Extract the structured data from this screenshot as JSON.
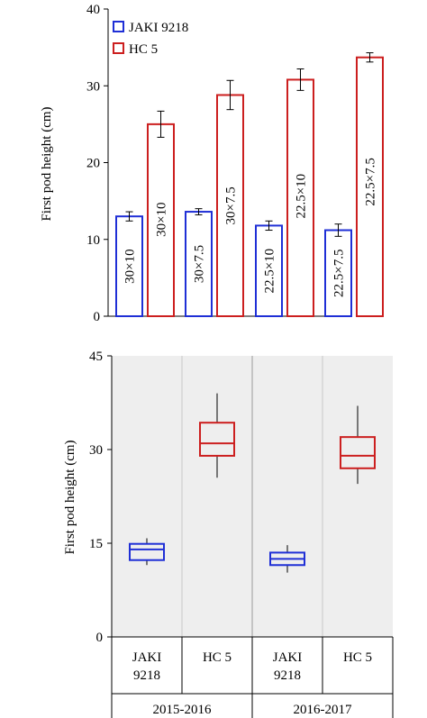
{
  "chart_data": [
    {
      "type": "bar",
      "ylabel": "First pod height (cm)",
      "ylim": [
        0,
        40
      ],
      "yticks": [
        0,
        10,
        20,
        30,
        40
      ],
      "grid": false,
      "legend_position": "top-left",
      "series": [
        {
          "name": "JAKI 9218",
          "color": "#1f2fd6",
          "values": [
            13.0,
            13.6,
            11.8,
            11.2
          ],
          "errors": [
            0.6,
            0.4,
            0.6,
            0.8
          ]
        },
        {
          "name": "HC 5",
          "color": "#cc1f1f",
          "values": [
            25.0,
            28.8,
            30.8,
            33.7
          ],
          "errors": [
            1.7,
            1.9,
            1.4,
            0.6
          ]
        }
      ],
      "bar_labels": [
        "30×10",
        "30×10",
        "30×7.5",
        "30×7.5",
        "22.5×10",
        "22.5×10",
        "22.5×7.5",
        "22.5×7.5"
      ]
    },
    {
      "type": "box",
      "ylabel": "First pod  height (cm)",
      "ylim": [
        0,
        45
      ],
      "yticks": [
        0,
        15,
        30,
        45
      ],
      "background": "#eeeeee",
      "categories": [
        "JAKI\n9218",
        "HC 5",
        "JAKI\n9218",
        "HC 5"
      ],
      "groups": [
        "2015-2016",
        "2016-2017"
      ],
      "boxes": [
        {
          "color": "#1f2fd6",
          "min": 11.5,
          "q1": 12.3,
          "median": 14.0,
          "q3": 14.9,
          "max": 15.8
        },
        {
          "color": "#cc1f1f",
          "min": 25.5,
          "q1": 29.0,
          "median": 31.0,
          "q3": 34.3,
          "max": 39.0
        },
        {
          "color": "#1f2fd6",
          "min": 10.3,
          "q1": 11.5,
          "median": 12.5,
          "q3": 13.5,
          "max": 14.7
        },
        {
          "color": "#cc1f1f",
          "min": 24.5,
          "q1": 27.0,
          "median": 29.0,
          "q3": 32.0,
          "max": 37.0
        }
      ]
    }
  ]
}
